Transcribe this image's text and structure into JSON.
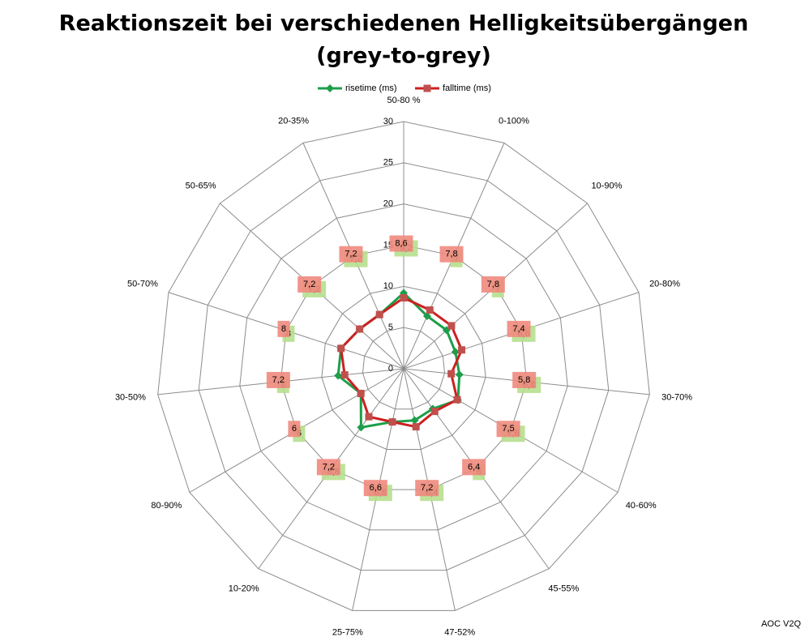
{
  "chart_data": {
    "type": "radar",
    "title": [
      "Reaktionszeit bei verschiedenen Helligkeitsübergängen",
      "(grey-to-grey)"
    ],
    "categories": [
      "50-80 %",
      "0-100%",
      "10-90%",
      "20-80%",
      "30-70%",
      "40-60%",
      "45-55%",
      "47-52%",
      "25-75%",
      "10-20%",
      "80-90%",
      "30-50%",
      "50-70%",
      "50-65%",
      "20-35%"
    ],
    "series": [
      {
        "name": "risetime (ms)",
        "color": "#1e9e4a",
        "label_color": "#b6df8e",
        "values": [
          9.2,
          7,
          7,
          6.6,
          6.8,
          7.6,
          6,
          6.4,
          6.6,
          8.8,
          6,
          8,
          8,
          7.2,
          7.2
        ],
        "value_labels": [
          "9,2",
          "7",
          "7",
          "6,6",
          "6,8",
          "7,6",
          "6",
          "6,4",
          "6,6",
          "8,8",
          "6",
          "8",
          "8",
          "7,2",
          "7,2"
        ]
      },
      {
        "name": "falltime (ms)",
        "color": "#cc2020",
        "label_color": "#f08a7e",
        "values": [
          8.6,
          7.8,
          7.8,
          7.4,
          5.8,
          7.5,
          6.4,
          7.2,
          6.6,
          7.2,
          6,
          7.2,
          8,
          7.2,
          7.2
        ],
        "value_labels": [
          "8,6",
          "7,8",
          "7,8",
          "7,4",
          "5,8",
          "7,5",
          "6,4",
          "7,2",
          "6,6",
          "7,2",
          "6",
          "7,2",
          "8",
          "7,2",
          "7,2"
        ]
      }
    ],
    "ylim": [
      0,
      30
    ],
    "yticks": [
      0,
      5,
      10,
      15,
      20,
      25,
      30
    ],
    "grid": true,
    "legend": "top",
    "annotation": "AOC V2Q"
  }
}
